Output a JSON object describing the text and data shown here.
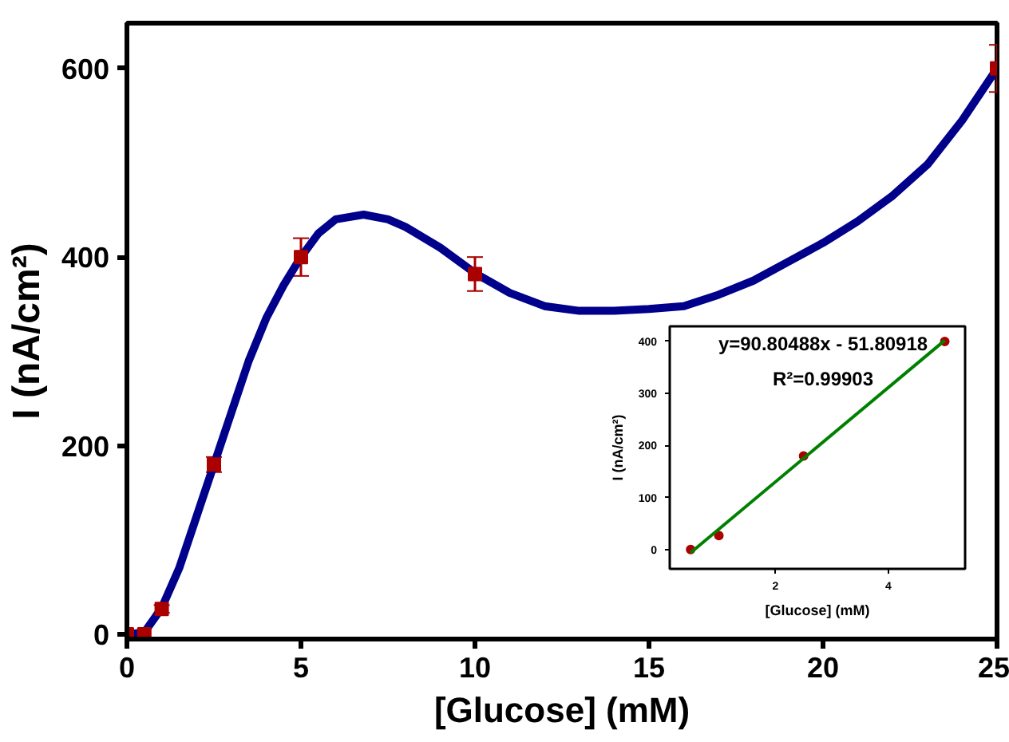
{
  "chart_data": [
    {
      "type": "line",
      "xlabel": "[Glucose] (mM)",
      "ylabel": "I (nA/cm²)",
      "xlim": [
        0,
        25
      ],
      "ylim": [
        -5,
        648
      ],
      "xticks": [
        0,
        5,
        10,
        15,
        20,
        25
      ],
      "yticks": [
        0,
        200,
        400,
        600
      ],
      "grid": false,
      "series": [
        {
          "color": "#00008b",
          "x": [
            0,
            0.5,
            1,
            1.5,
            2,
            2.5,
            3,
            3.5,
            4,
            4.5,
            5,
            5.5,
            6,
            6.8,
            7.5,
            8,
            9,
            10,
            11,
            12,
            13,
            14,
            15,
            16,
            17,
            18,
            19,
            20,
            21,
            22,
            23,
            24,
            25
          ],
          "values": [
            0,
            2,
            28,
            70,
            125,
            180,
            235,
            290,
            335,
            370,
            400,
            425,
            440,
            445,
            440,
            432,
            410,
            383,
            362,
            348,
            343,
            343,
            345,
            348,
            360,
            375,
            395,
            415,
            438,
            465,
            498,
            545,
            600
          ]
        },
        {
          "type": "scatter",
          "color": "#aa0000",
          "marker": "square",
          "x": [
            0,
            0.5,
            1,
            2.5,
            5,
            10,
            25
          ],
          "values": [
            0,
            0,
            27,
            180,
            400,
            382,
            600
          ],
          "errors": [
            null,
            null,
            4,
            8,
            20,
            18,
            25
          ]
        }
      ]
    },
    {
      "type": "line",
      "xlabel": "[Glucose] (mM)",
      "ylabel": "I (nA/cm²)",
      "xlim": [
        0.13,
        5.36
      ],
      "ylim": [
        -37,
        429
      ],
      "xticks": [
        2,
        4
      ],
      "yticks": [
        0,
        100,
        200,
        300,
        400
      ],
      "grid": false,
      "annotations": [
        "y=90.80488x - 51.80918",
        "R²=0.99903"
      ],
      "series": [
        {
          "type": "scatter",
          "color": "#aa0000",
          "marker": "circle",
          "x": [
            0.5,
            1,
            2.5,
            5
          ],
          "values": [
            0,
            27,
            180,
            400
          ]
        },
        {
          "color": "#008000",
          "x": [
            0.5,
            5
          ],
          "values": [
            -6,
            402
          ]
        }
      ]
    }
  ]
}
